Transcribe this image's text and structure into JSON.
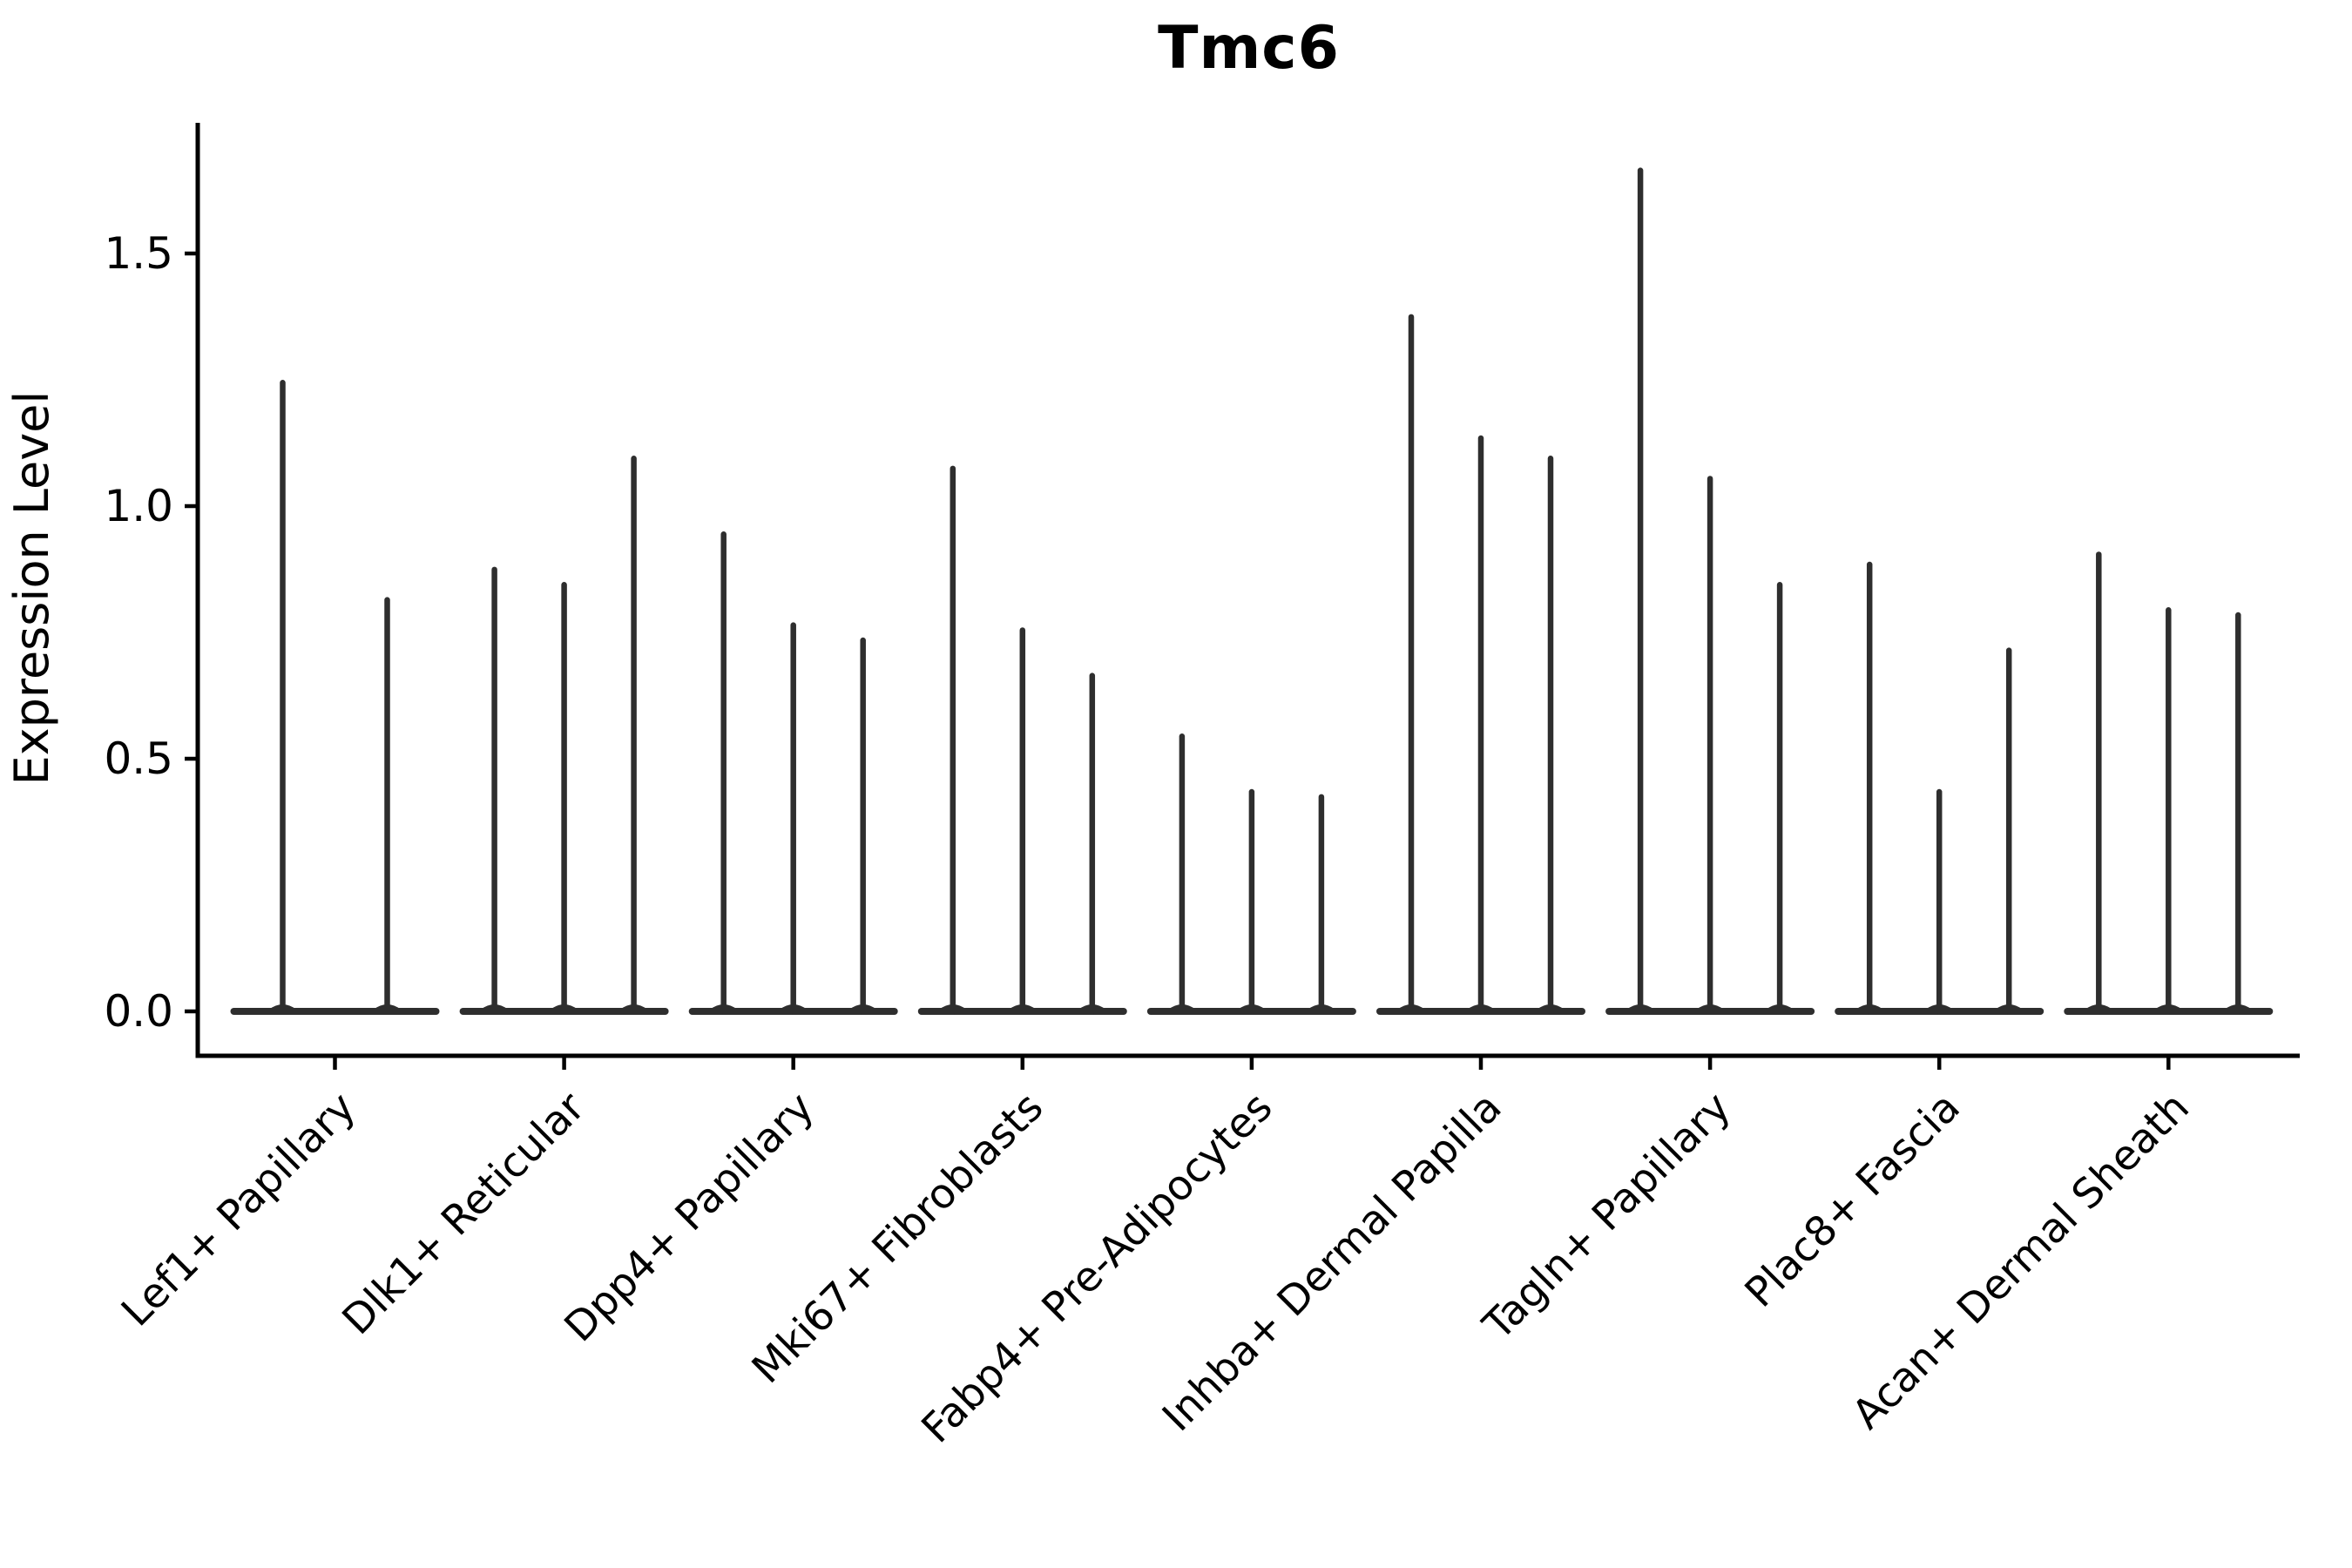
{
  "figure": {
    "title": "Tmc6"
  },
  "colors": {
    "violin_fill": "#2e2e2e",
    "axis": "#000000",
    "text": "#000000",
    "background": "#ffffff"
  },
  "chart_data": {
    "type": "violin",
    "title": "Tmc6",
    "xlabel": "",
    "ylabel": "Expression Level",
    "ytick_labels": [
      "0.0",
      "0.5",
      "1.0",
      "1.5"
    ],
    "ytick_values": [
      0.0,
      0.5,
      1.0,
      1.5
    ],
    "ylim": [
      -0.09,
      1.76
    ],
    "grid": false,
    "legend": "none",
    "style_note": "Seurat-style stacked VlnPlot: each violin is a wide flat base at 0 expression with a thin needle spike up to the maximum expression value",
    "categories": [
      "Lef1+ Papillary",
      "Dlk1+ Reticular",
      "Dpp4+ Papillary",
      "Mki67+ Fibroblasts",
      "Fabp4+ Pre-Adipocytes",
      "Inhba+ Dermal Papilla",
      "Tagln+ Papillary",
      "Plac8+ Fascia",
      "Acan+ Dermal Sheath"
    ],
    "groups": [
      {
        "label": "Lef1+ Papillary",
        "violin_max_values": [
          1.25,
          0.82
        ]
      },
      {
        "label": "Dlk1+ Reticular",
        "violin_max_values": [
          0.88,
          0.85,
          1.1
        ]
      },
      {
        "label": "Dpp4+ Papillary",
        "violin_max_values": [
          0.95,
          0.77,
          0.74
        ]
      },
      {
        "label": "Mki67+ Fibroblasts",
        "violin_max_values": [
          1.08,
          0.76,
          0.67
        ]
      },
      {
        "label": "Fabp4+ Pre-Adipocytes",
        "violin_max_values": [
          0.55,
          0.44,
          0.43
        ]
      },
      {
        "label": "Inhba+ Dermal Papilla",
        "violin_max_values": [
          1.38,
          1.14,
          1.1
        ]
      },
      {
        "label": "Tagln+ Papillary",
        "violin_max_values": [
          1.67,
          1.06,
          0.85
        ]
      },
      {
        "label": "Plac8+ Fascia",
        "violin_max_values": [
          0.89,
          0.44,
          0.72
        ]
      },
      {
        "label": "Acan+ Dermal Sheath",
        "violin_max_values": [
          0.91,
          0.8,
          0.79
        ]
      }
    ]
  }
}
